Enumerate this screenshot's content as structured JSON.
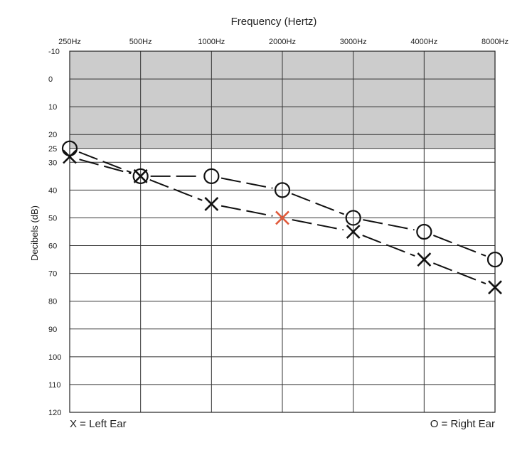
{
  "chart_data": {
    "type": "scatter",
    "title": "Frequency (Hertz)",
    "xlabel": "Frequency (Hertz)",
    "ylabel": "Decibels (dB)",
    "x_categories": [
      "250Hz",
      "500Hz",
      "1000Hz",
      "2000Hz",
      "3000Hz",
      "4000Hz",
      "8000Hz"
    ],
    "y_ticks": [
      -10,
      0,
      10,
      20,
      25,
      30,
      40,
      50,
      60,
      70,
      80,
      90,
      100,
      110,
      120
    ],
    "ylim": [
      -10,
      120
    ],
    "y_inverted": true,
    "shaded_band": {
      "from": -10,
      "to": 25,
      "color": "#cccccc"
    },
    "grid": true,
    "series": [
      {
        "marker": "O",
        "values": [
          25,
          35,
          35,
          40,
          50,
          55,
          65
        ],
        "color": "#111111"
      },
      {
        "marker": "X",
        "values": [
          28,
          35,
          45,
          50,
          55,
          65,
          75
        ],
        "color": "#111111",
        "point_colors": [
          "#111111",
          "#111111",
          "#111111",
          "#e05a3a",
          "#111111",
          "#111111",
          "#111111"
        ]
      }
    ],
    "legend": {
      "left": "X = Left Ear",
      "right": "O = Right Ear"
    }
  }
}
